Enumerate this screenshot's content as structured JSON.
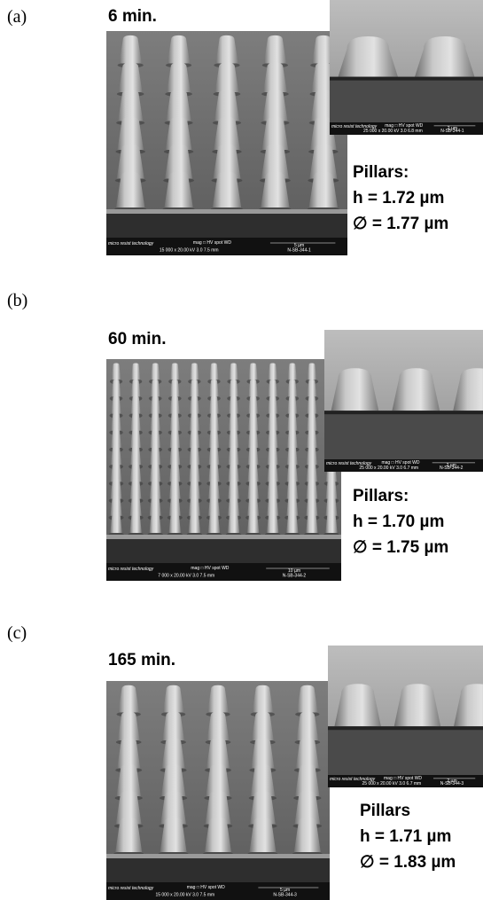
{
  "panels": [
    {
      "label": "(a)",
      "time": "6 min.",
      "pillars_title": "Pillars:",
      "height": "h = 1.72 µm",
      "diameter": "∅ = 1.77 µm",
      "main_sem": {
        "brand": "micro resist technology",
        "info_header": "mag  □  HV  spot  WD",
        "info_values": "15 000 x 20.00 kV  3.0  7.5 mm",
        "scale": "5 µm",
        "sample": "N-SB-344-1"
      },
      "inset_sem": {
        "brand": "micro resist technology",
        "info_header": "mag  □  HV  spot  WD",
        "info_values": "25 000 x 20.00 kV  3.0  6.8 mm",
        "scale": "2 µm",
        "sample": "N-SB-344-1"
      }
    },
    {
      "label": "(b)",
      "time": "60 min.",
      "pillars_title": "Pillars:",
      "height": "h = 1.70 µm",
      "diameter": "∅ = 1.75 µm",
      "main_sem": {
        "brand": "micro resist technology",
        "info_header": "mag  □  HV  spot  WD",
        "info_values": "7 000 x 20.00 kV  3.0  7.5 mm",
        "scale": "10 µm",
        "sample": "N-SB-344-2"
      },
      "inset_sem": {
        "brand": "micro resist technology",
        "info_header": "mag  □  HV  spot  WD",
        "info_values": "25 000 x 20.00 kV  3.0  6.7 mm",
        "scale": "2 µm",
        "sample": "N-SB-344-2"
      }
    },
    {
      "label": "(c)",
      "time": "165 min.",
      "pillars_title": "Pillars",
      "height": "h = 1.71 µm",
      "diameter": "∅ = 1.83 µm",
      "main_sem": {
        "brand": "micro resist technology",
        "info_header": "mag  □  HV  spot  WD",
        "info_values": "15 000 x 20.00 kV  3.0  7.5 mm",
        "scale": "5 µm",
        "sample": "N-SB-344-3"
      },
      "inset_sem": {
        "brand": "micro resist technology",
        "info_header": "mag  □  HV  spot  WD",
        "info_values": "25 000 x 20.00 kV  3.0  6.7 mm",
        "scale": "2 µm",
        "sample": "N-SB-344-3"
      }
    }
  ]
}
